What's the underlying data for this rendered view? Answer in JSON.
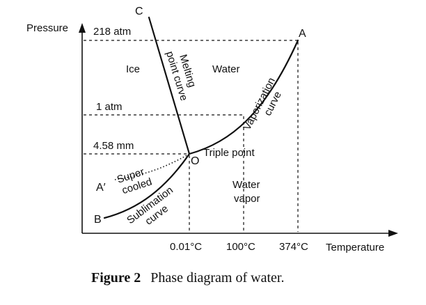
{
  "diagram": {
    "axes": {
      "y_label": "Pressure",
      "x_label": "Temperature"
    },
    "pressure_ticks": [
      "218 atm",
      "1 atm",
      "4.58 mm"
    ],
    "temperature_ticks": [
      "0.01°C",
      "100°C",
      "374°C"
    ],
    "points": {
      "a": "A",
      "b": "B",
      "c": "C",
      "a_prime": "A′",
      "o": "O",
      "triple_point": "Triple point"
    },
    "regions": {
      "ice": "Ice",
      "water": "Water",
      "water_vapor_1": "Water",
      "water_vapor_2": "vapor"
    },
    "curves": {
      "melting_1": "Melting",
      "melting_2": "point curve",
      "vaporization_1": "Vaporization",
      "vaporization_2": "curve",
      "sublimation_1": "Sublimation",
      "sublimation_2": "curve",
      "supercooled_1": "Super",
      "supercooled_2": "cooled"
    }
  },
  "caption": {
    "label": "Figure 2",
    "text": "Phase diagram of water."
  }
}
